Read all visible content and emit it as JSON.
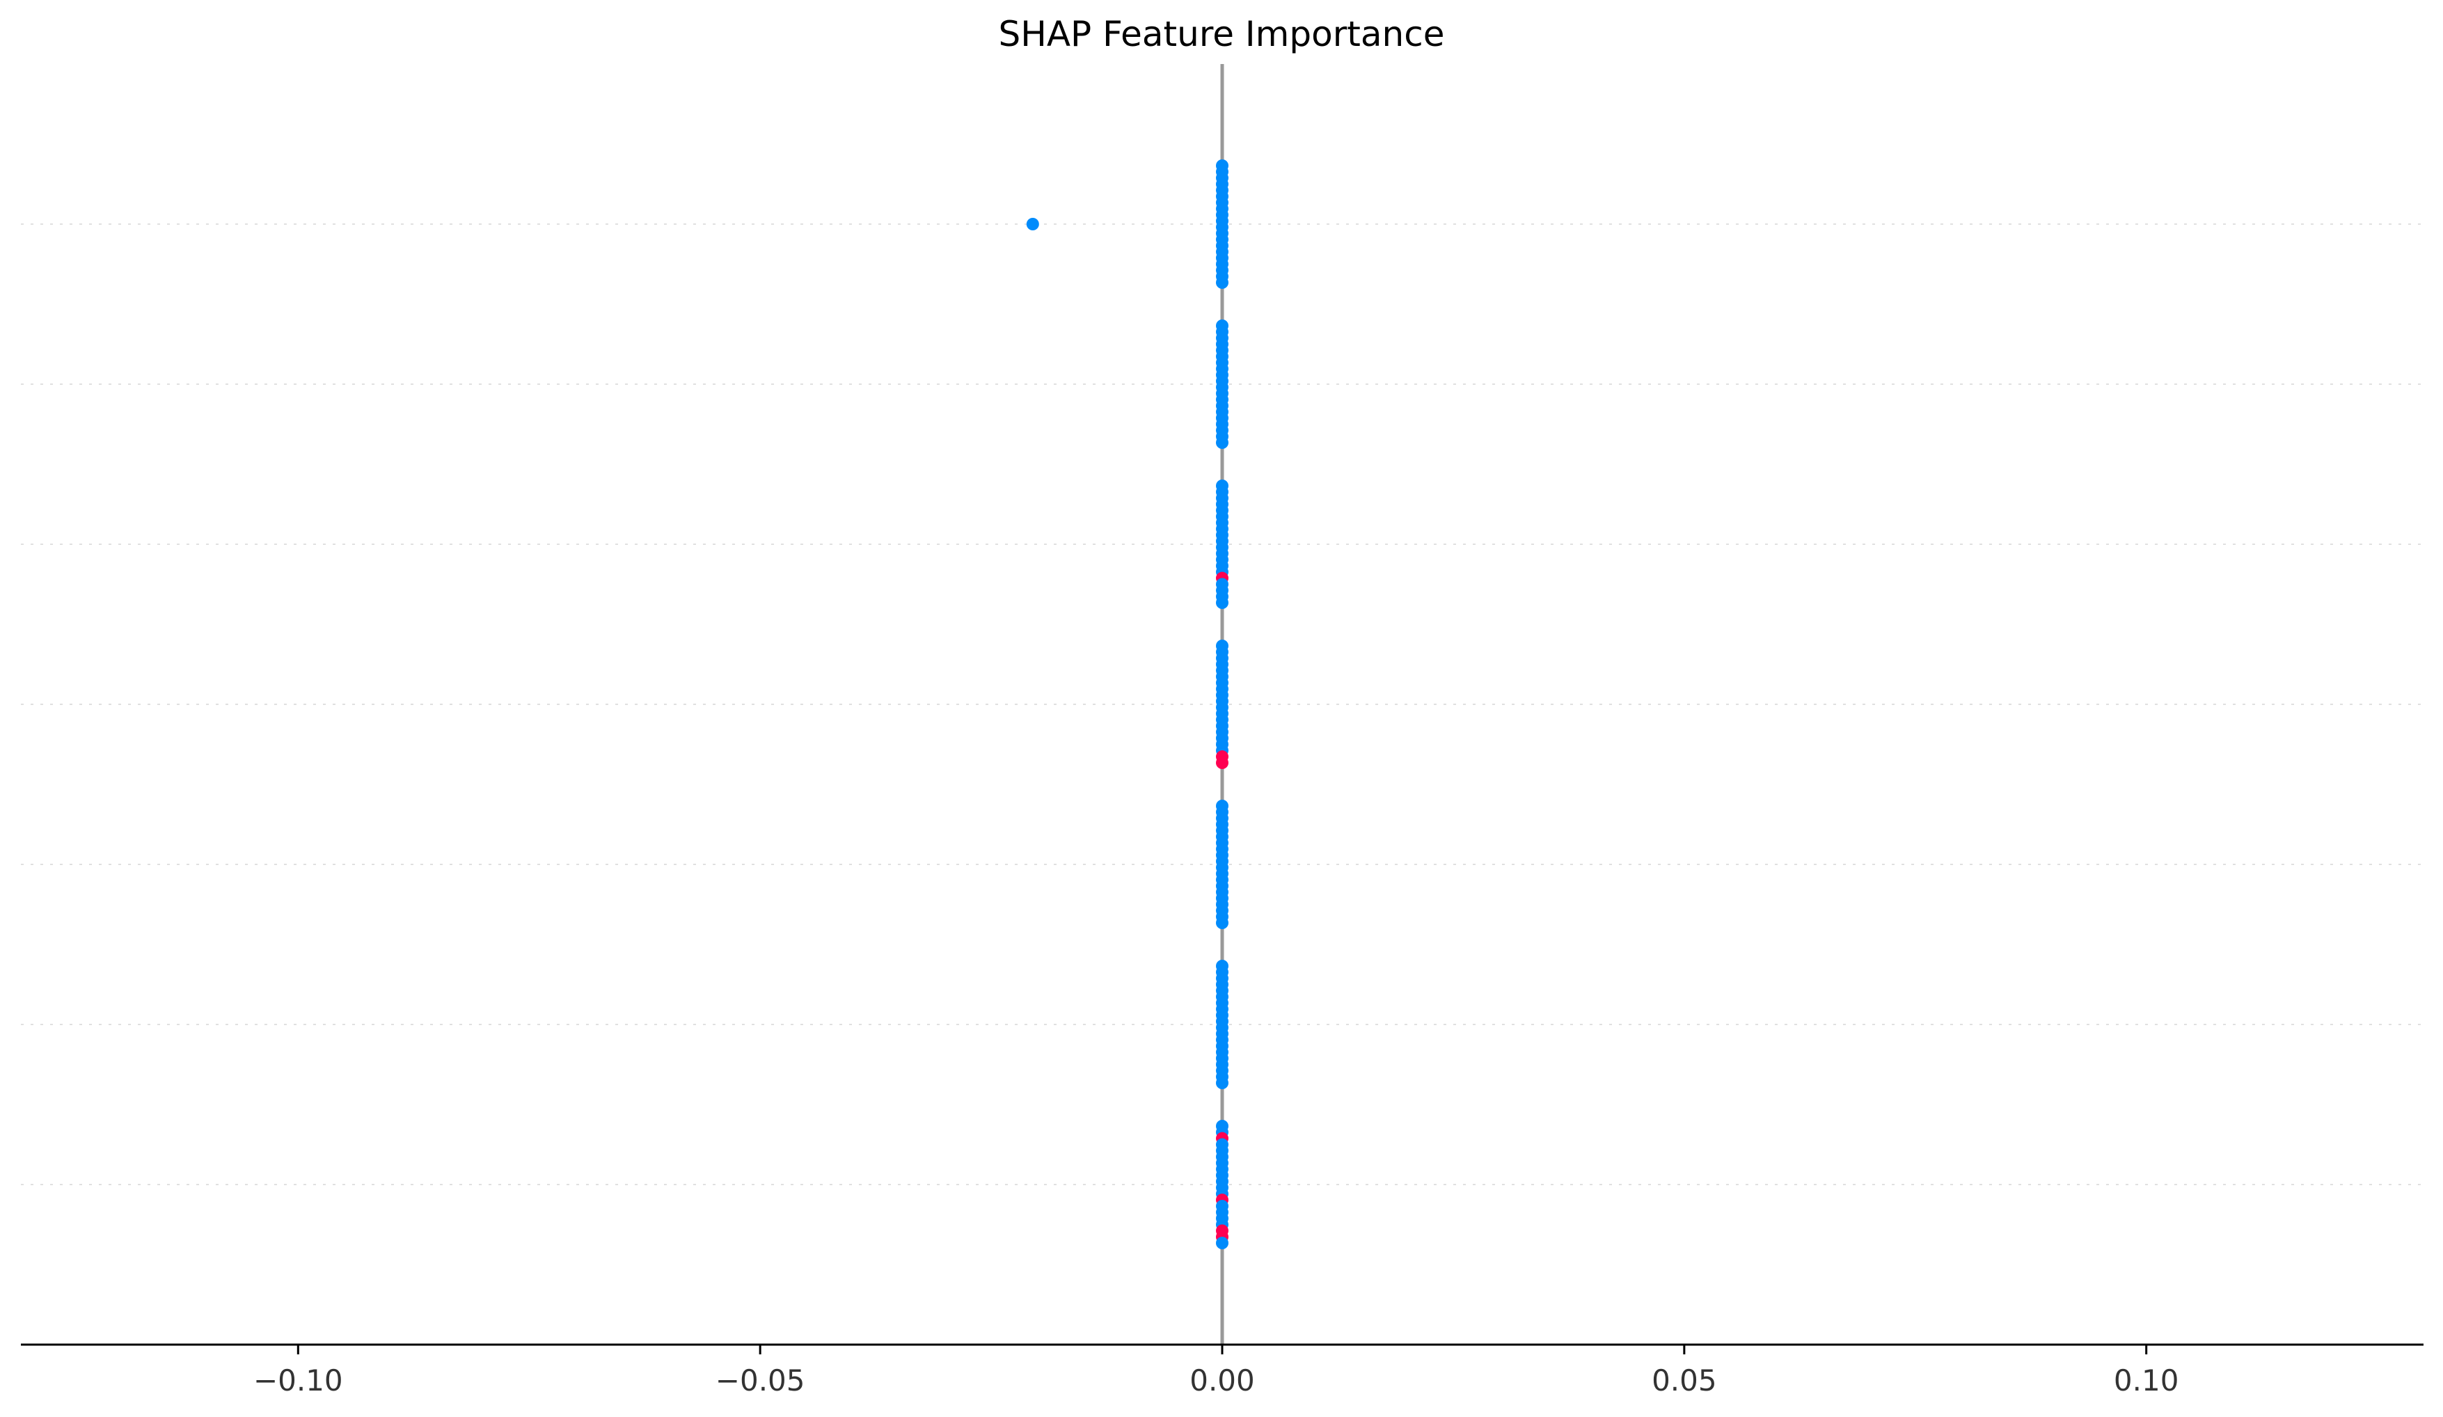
{
  "chart_data": {
    "type": "scatter",
    "subtype": "shap-beeswarm",
    "title": "SHAP Feature Importance",
    "xlabel": "",
    "ylabel": "",
    "xlim": [
      -0.13,
      0.13
    ],
    "x_ticks": [
      -0.1,
      -0.05,
      0.0,
      0.05,
      0.1
    ],
    "x_tick_labels": [
      "−0.10",
      "−0.05",
      "0.00",
      "0.05",
      "0.10"
    ],
    "feature_labels_visible": false,
    "grid": "dotted-horizontal",
    "zero_line": 0.0,
    "colors": {
      "low": "#008bfb",
      "high": "#ff0051",
      "zero_line": "#999999",
      "grid": "#e0e0e0",
      "axis": "#000000"
    },
    "rows": [
      {
        "x": [
          -0.0205,
          0.0,
          0.0,
          0.0,
          0.0,
          0.0,
          0.0,
          0.0,
          0.0,
          0.0,
          0.0,
          0.0,
          0.0,
          0.0,
          0.0,
          0.0,
          0.0,
          0.0,
          0.0,
          0.0,
          0.0
        ],
        "highlight": []
      },
      {
        "x": [
          0.0,
          0.0,
          0.0,
          0.0,
          0.0,
          0.0,
          0.0,
          0.0,
          0.0,
          0.0,
          0.0,
          0.0,
          0.0,
          0.0,
          0.0,
          0.0,
          0.0,
          0.0,
          0.0,
          0.0
        ],
        "highlight": []
      },
      {
        "x": [
          0.0,
          0.0,
          0.0,
          0.0,
          0.0,
          0.0,
          0.0,
          0.0,
          0.0,
          0.0,
          0.0,
          0.0,
          0.0,
          0.0,
          0.0,
          0.0,
          0.0,
          0.0,
          0.0,
          0.0
        ],
        "highlight": [
          15
        ]
      },
      {
        "x": [
          0.0,
          0.0,
          0.0,
          0.0,
          0.0,
          0.0,
          0.0,
          0.0,
          0.0,
          0.0,
          0.0,
          0.0,
          0.0,
          0.0,
          0.0,
          0.0,
          0.0,
          0.0,
          0.0,
          0.0
        ],
        "highlight": [
          18,
          19
        ]
      },
      {
        "x": [
          0.0,
          0.0,
          0.0,
          0.0,
          0.0,
          0.0,
          0.0,
          0.0,
          0.0,
          0.0,
          0.0,
          0.0,
          0.0,
          0.0,
          0.0,
          0.0,
          0.0,
          0.0,
          0.0,
          0.0
        ],
        "highlight": []
      },
      {
        "x": [
          0.0,
          0.0,
          0.0,
          0.0,
          0.0,
          0.0,
          0.0,
          0.0,
          0.0,
          0.0,
          0.0,
          0.0,
          0.0,
          0.0,
          0.0,
          0.0,
          0.0,
          0.0,
          0.0,
          0.0
        ],
        "highlight": []
      },
      {
        "x": [
          0.0,
          0.0,
          0.0,
          0.0,
          0.0,
          0.0,
          0.0,
          0.0,
          0.0,
          0.0,
          0.0,
          0.0,
          0.0,
          0.0,
          0.0,
          0.0,
          0.0,
          0.0,
          0.0,
          0.0
        ],
        "highlight": [
          2,
          12,
          17,
          18
        ]
      }
    ]
  }
}
